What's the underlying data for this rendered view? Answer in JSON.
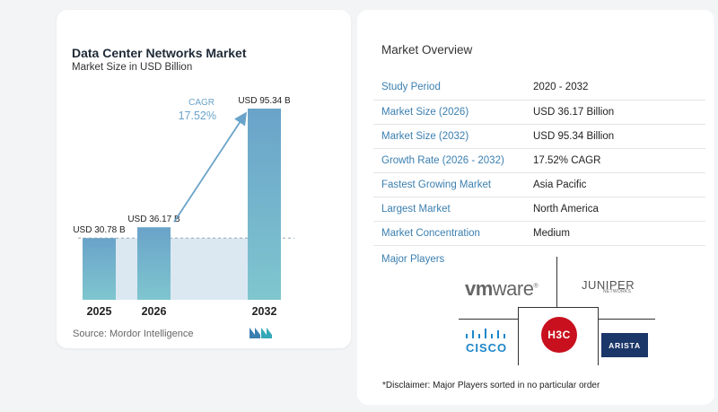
{
  "chart_data": {
    "type": "bar",
    "title": "Data Center Networks Market",
    "subtitle": "Market Size in USD Billion",
    "categories": [
      "2025",
      "2026",
      "2032"
    ],
    "values": [
      30.78,
      36.17,
      95.34
    ],
    "data_labels": [
      "USD 30.78 B",
      "USD 36.17 B",
      "USD 95.34 B"
    ],
    "cagr_label": "CAGR",
    "cagr_value": "17.52%",
    "ylim": [
      0,
      100
    ],
    "grid": false,
    "colors": {
      "bar_top": "#6aa3c9",
      "bar_bottom": "#7fc6cf",
      "arrow": "#6aa3c9",
      "band": "#dbe8f2"
    }
  },
  "source": "Source:  Mordor Intelligence",
  "overview": {
    "title": "Market Overview",
    "rows": [
      {
        "key": "Study Period",
        "value": "2020 - 2032"
      },
      {
        "key": "Market Size (2026)",
        "value": "USD 36.17 Billion"
      },
      {
        "key": "Market Size (2032)",
        "value": "USD 95.34 Billion"
      },
      {
        "key": "Growth Rate (2026 - 2032)",
        "value": "17.52% CAGR"
      },
      {
        "key": "Fastest Growing Market",
        "value": "Asia Pacific"
      },
      {
        "key": "Largest Market",
        "value": "North America"
      },
      {
        "key": "Market Concentration",
        "value": "Medium"
      }
    ]
  },
  "players": {
    "title": "Major Players",
    "logos": {
      "vmware_a": "vm",
      "vmware_b": "ware",
      "vmware_reg": "®",
      "juniper": "JUNIPER",
      "juniper_sub": "NETWORKS",
      "cisco": "CISCO",
      "h3c": "H3C",
      "arista": "ARISTA"
    }
  },
  "disclaimer": "*Disclaimer: Major Players sorted in no particular order"
}
